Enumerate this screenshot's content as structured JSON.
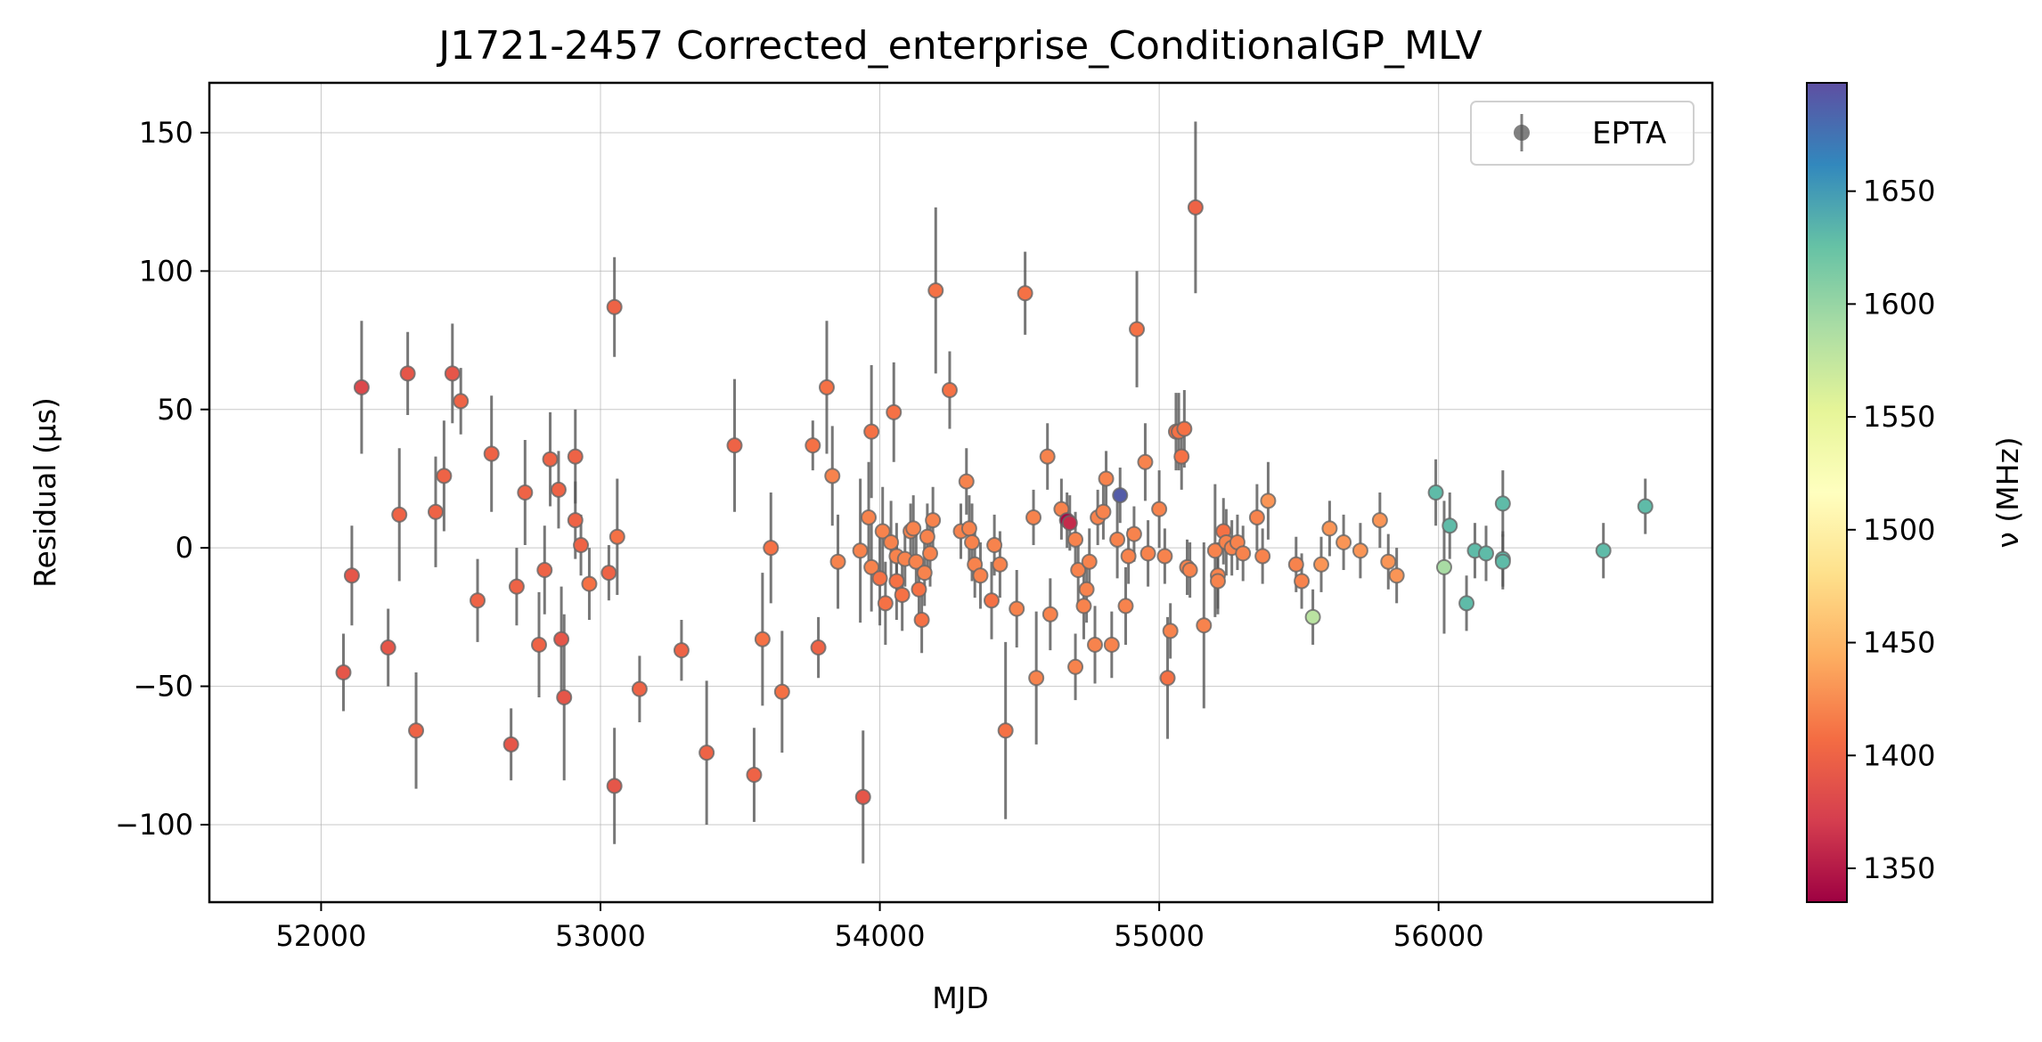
{
  "chart_data": {
    "type": "scatter",
    "title": "J1721-2457 Corrected_enterprise_ConditionalGP_MLV",
    "xlabel": "MJD",
    "ylabel": "Residual (μs)",
    "colorbar_label": "ν (MHz)",
    "xlim": [
      51600,
      56980
    ],
    "ylim": [
      -128,
      168
    ],
    "xticks": [
      "52000",
      "53000",
      "54000",
      "55000",
      "56000"
    ],
    "yticks": [
      "150",
      "100",
      "50",
      "0",
      "−50",
      "−100"
    ],
    "colorbar_range": [
      1335,
      1698
    ],
    "colorbar_ticks": [
      "1650",
      "1600",
      "1550",
      "1500",
      "1450",
      "1400",
      "1350"
    ],
    "colormap": "Spectral",
    "grid": true,
    "legend": {
      "position": "top-right",
      "label": "EPTA"
    },
    "series": [
      {
        "name": "EPTA",
        "points": [
          {
            "x": 52080,
            "y": -45,
            "err": 14,
            "freq": 1390
          },
          {
            "x": 52110,
            "y": -10,
            "err": 18,
            "freq": 1390
          },
          {
            "x": 52145,
            "y": 58,
            "err": 24,
            "freq": 1380
          },
          {
            "x": 52240,
            "y": -36,
            "err": 14,
            "freq": 1390
          },
          {
            "x": 52280,
            "y": 12,
            "err": 24,
            "freq": 1400
          },
          {
            "x": 52310,
            "y": 63,
            "err": 15,
            "freq": 1390
          },
          {
            "x": 52340,
            "y": -66,
            "err": 21,
            "freq": 1400
          },
          {
            "x": 52410,
            "y": 13,
            "err": 20,
            "freq": 1400
          },
          {
            "x": 52440,
            "y": 26,
            "err": 20,
            "freq": 1400
          },
          {
            "x": 52470,
            "y": 63,
            "err": 18,
            "freq": 1390
          },
          {
            "x": 52500,
            "y": 53,
            "err": 12,
            "freq": 1400
          },
          {
            "x": 52560,
            "y": -19,
            "err": 15,
            "freq": 1400
          },
          {
            "x": 52610,
            "y": 34,
            "err": 21,
            "freq": 1400
          },
          {
            "x": 52680,
            "y": -71,
            "err": 13,
            "freq": 1390
          },
          {
            "x": 52700,
            "y": -14,
            "err": 14,
            "freq": 1400
          },
          {
            "x": 52730,
            "y": 20,
            "err": 19,
            "freq": 1400
          },
          {
            "x": 52780,
            "y": -35,
            "err": 19,
            "freq": 1400
          },
          {
            "x": 52800,
            "y": -8,
            "err": 16,
            "freq": 1400
          },
          {
            "x": 52820,
            "y": 32,
            "err": 17,
            "freq": 1400
          },
          {
            "x": 52850,
            "y": 21,
            "err": 14,
            "freq": 1400
          },
          {
            "x": 52860,
            "y": -33,
            "err": 19,
            "freq": 1390
          },
          {
            "x": 52870,
            "y": -54,
            "err": 30,
            "freq": 1390
          },
          {
            "x": 52910,
            "y": 33,
            "err": 17,
            "freq": 1400
          },
          {
            "x": 52910,
            "y": 10,
            "err": 14,
            "freq": 1400
          },
          {
            "x": 52930,
            "y": 1,
            "err": 11,
            "freq": 1400
          },
          {
            "x": 52960,
            "y": -13,
            "err": 13,
            "freq": 1410
          },
          {
            "x": 53030,
            "y": -9,
            "err": 10,
            "freq": 1400
          },
          {
            "x": 53050,
            "y": 87,
            "err": 18,
            "freq": 1400
          },
          {
            "x": 53050,
            "y": -86,
            "err": 21,
            "freq": 1390
          },
          {
            "x": 53060,
            "y": 4,
            "err": 21,
            "freq": 1410
          },
          {
            "x": 53140,
            "y": -51,
            "err": 12,
            "freq": 1400
          },
          {
            "x": 53290,
            "y": -37,
            "err": 11,
            "freq": 1400
          },
          {
            "x": 53380,
            "y": -74,
            "err": 26,
            "freq": 1400
          },
          {
            "x": 53480,
            "y": 37,
            "err": 24,
            "freq": 1400
          },
          {
            "x": 53550,
            "y": -82,
            "err": 17,
            "freq": 1400
          },
          {
            "x": 53580,
            "y": -33,
            "err": 24,
            "freq": 1410
          },
          {
            "x": 53610,
            "y": 0,
            "err": 20,
            "freq": 1410
          },
          {
            "x": 53650,
            "y": -52,
            "err": 22,
            "freq": 1410
          },
          {
            "x": 53760,
            "y": 37,
            "err": 9,
            "freq": 1410
          },
          {
            "x": 53780,
            "y": -36,
            "err": 11,
            "freq": 1400
          },
          {
            "x": 53810,
            "y": 58,
            "err": 24,
            "freq": 1410
          },
          {
            "x": 53830,
            "y": 26,
            "err": 18,
            "freq": 1420
          },
          {
            "x": 53850,
            "y": -5,
            "err": 17,
            "freq": 1420
          },
          {
            "x": 53930,
            "y": -1,
            "err": 26,
            "freq": 1420
          },
          {
            "x": 53940,
            "y": -90,
            "err": 24,
            "freq": 1390
          },
          {
            "x": 53960,
            "y": 11,
            "err": 20,
            "freq": 1420
          },
          {
            "x": 53970,
            "y": -7,
            "err": 16,
            "freq": 1420
          },
          {
            "x": 53970,
            "y": 42,
            "err": 24,
            "freq": 1410
          },
          {
            "x": 54000,
            "y": -11,
            "err": 17,
            "freq": 1410
          },
          {
            "x": 54010,
            "y": 6,
            "err": 16,
            "freq": 1420
          },
          {
            "x": 54020,
            "y": -20,
            "err": 15,
            "freq": 1410
          },
          {
            "x": 54040,
            "y": 2,
            "err": 15,
            "freq": 1420
          },
          {
            "x": 54050,
            "y": 49,
            "err": 18,
            "freq": 1410
          },
          {
            "x": 54060,
            "y": -12,
            "err": 14,
            "freq": 1410
          },
          {
            "x": 54060,
            "y": -3,
            "err": 12,
            "freq": 1420
          },
          {
            "x": 54080,
            "y": -17,
            "err": 13,
            "freq": 1410
          },
          {
            "x": 54090,
            "y": -4,
            "err": 10,
            "freq": 1420
          },
          {
            "x": 54110,
            "y": 6,
            "err": 10,
            "freq": 1420
          },
          {
            "x": 54120,
            "y": 7,
            "err": 12,
            "freq": 1420
          },
          {
            "x": 54130,
            "y": -5,
            "err": 12,
            "freq": 1420
          },
          {
            "x": 54140,
            "y": -15,
            "err": 12,
            "freq": 1410
          },
          {
            "x": 54150,
            "y": -26,
            "err": 12,
            "freq": 1410
          },
          {
            "x": 54160,
            "y": -9,
            "err": 12,
            "freq": 1420
          },
          {
            "x": 54170,
            "y": 4,
            "err": 12,
            "freq": 1420
          },
          {
            "x": 54180,
            "y": -2,
            "err": 12,
            "freq": 1420
          },
          {
            "x": 54190,
            "y": 10,
            "err": 12,
            "freq": 1420
          },
          {
            "x": 54200,
            "y": 93,
            "err": 30,
            "freq": 1410
          },
          {
            "x": 54250,
            "y": 57,
            "err": 14,
            "freq": 1410
          },
          {
            "x": 54290,
            "y": 6,
            "err": 10,
            "freq": 1420
          },
          {
            "x": 54310,
            "y": 24,
            "err": 12,
            "freq": 1420
          },
          {
            "x": 54320,
            "y": 7,
            "err": 12,
            "freq": 1420
          },
          {
            "x": 54330,
            "y": 2,
            "err": 14,
            "freq": 1420
          },
          {
            "x": 54340,
            "y": -6,
            "err": 12,
            "freq": 1420
          },
          {
            "x": 54360,
            "y": -10,
            "err": 12,
            "freq": 1420
          },
          {
            "x": 54400,
            "y": -19,
            "err": 14,
            "freq": 1410
          },
          {
            "x": 54410,
            "y": 1,
            "err": 11,
            "freq": 1420
          },
          {
            "x": 54430,
            "y": -6,
            "err": 12,
            "freq": 1420
          },
          {
            "x": 54450,
            "y": -66,
            "err": 32,
            "freq": 1410
          },
          {
            "x": 54490,
            "y": -22,
            "err": 14,
            "freq": 1420
          },
          {
            "x": 54520,
            "y": 92,
            "err": 15,
            "freq": 1410
          },
          {
            "x": 54550,
            "y": 11,
            "err": 10,
            "freq": 1420
          },
          {
            "x": 54560,
            "y": -47,
            "err": 24,
            "freq": 1420
          },
          {
            "x": 54600,
            "y": 33,
            "err": 12,
            "freq": 1420
          },
          {
            "x": 54610,
            "y": -24,
            "err": 13,
            "freq": 1420
          },
          {
            "x": 54650,
            "y": 14,
            "err": 11,
            "freq": 1420
          },
          {
            "x": 54670,
            "y": 10,
            "err": 10,
            "freq": 1340
          },
          {
            "x": 54680,
            "y": 9,
            "err": 10,
            "freq": 1360
          },
          {
            "x": 54700,
            "y": 3,
            "err": 10,
            "freq": 1420
          },
          {
            "x": 54700,
            "y": -43,
            "err": 12,
            "freq": 1420
          },
          {
            "x": 54710,
            "y": -8,
            "err": 12,
            "freq": 1420
          },
          {
            "x": 54730,
            "y": -21,
            "err": 12,
            "freq": 1420
          },
          {
            "x": 54740,
            "y": -15,
            "err": 12,
            "freq": 1420
          },
          {
            "x": 54750,
            "y": -5,
            "err": 12,
            "freq": 1420
          },
          {
            "x": 54770,
            "y": -35,
            "err": 14,
            "freq": 1420
          },
          {
            "x": 54780,
            "y": 11,
            "err": 10,
            "freq": 1420
          },
          {
            "x": 54800,
            "y": 13,
            "err": 10,
            "freq": 1420
          },
          {
            "x": 54810,
            "y": 25,
            "err": 10,
            "freq": 1420
          },
          {
            "x": 54830,
            "y": -35,
            "err": 12,
            "freq": 1420
          },
          {
            "x": 54850,
            "y": 3,
            "err": 14,
            "freq": 1420
          },
          {
            "x": 54860,
            "y": 19,
            "err": 10,
            "freq": 1690
          },
          {
            "x": 54880,
            "y": -21,
            "err": 14,
            "freq": 1420
          },
          {
            "x": 54890,
            "y": -3,
            "err": 10,
            "freq": 1420
          },
          {
            "x": 54910,
            "y": 5,
            "err": 10,
            "freq": 1420
          },
          {
            "x": 54920,
            "y": 79,
            "err": 21,
            "freq": 1410
          },
          {
            "x": 54950,
            "y": 31,
            "err": 14,
            "freq": 1420
          },
          {
            "x": 54960,
            "y": -2,
            "err": 12,
            "freq": 1420
          },
          {
            "x": 55000,
            "y": 14,
            "err": 14,
            "freq": 1420
          },
          {
            "x": 55020,
            "y": -3,
            "err": 10,
            "freq": 1420
          },
          {
            "x": 55030,
            "y": -47,
            "err": 22,
            "freq": 1410
          },
          {
            "x": 55040,
            "y": -30,
            "err": 10,
            "freq": 1420
          },
          {
            "x": 55060,
            "y": 42,
            "err": 14,
            "freq": 1410
          },
          {
            "x": 55070,
            "y": 42,
            "err": 14,
            "freq": 1410
          },
          {
            "x": 55080,
            "y": 33,
            "err": 12,
            "freq": 1410
          },
          {
            "x": 55090,
            "y": 43,
            "err": 14,
            "freq": 1410
          },
          {
            "x": 55100,
            "y": -7,
            "err": 10,
            "freq": 1420
          },
          {
            "x": 55110,
            "y": -8,
            "err": 10,
            "freq": 1420
          },
          {
            "x": 55130,
            "y": 123,
            "err": 31,
            "freq": 1400
          },
          {
            "x": 55160,
            "y": -28,
            "err": 30,
            "freq": 1420
          },
          {
            "x": 55200,
            "y": -1,
            "err": 24,
            "freq": 1420
          },
          {
            "x": 55210,
            "y": -10,
            "err": 12,
            "freq": 1420
          },
          {
            "x": 55210,
            "y": -12,
            "err": 12,
            "freq": 1420
          },
          {
            "x": 55230,
            "y": 6,
            "err": 12,
            "freq": 1410
          },
          {
            "x": 55240,
            "y": 2,
            "err": 12,
            "freq": 1420
          },
          {
            "x": 55260,
            "y": 0,
            "err": 10,
            "freq": 1420
          },
          {
            "x": 55280,
            "y": 2,
            "err": 10,
            "freq": 1420
          },
          {
            "x": 55300,
            "y": -2,
            "err": 10,
            "freq": 1420
          },
          {
            "x": 55350,
            "y": 11,
            "err": 12,
            "freq": 1420
          },
          {
            "x": 55370,
            "y": -3,
            "err": 10,
            "freq": 1420
          },
          {
            "x": 55390,
            "y": 17,
            "err": 14,
            "freq": 1430
          },
          {
            "x": 55490,
            "y": -6,
            "err": 10,
            "freq": 1420
          },
          {
            "x": 55510,
            "y": -12,
            "err": 10,
            "freq": 1420
          },
          {
            "x": 55550,
            "y": -25,
            "err": 10,
            "freq": 1580
          },
          {
            "x": 55580,
            "y": -6,
            "err": 10,
            "freq": 1430
          },
          {
            "x": 55610,
            "y": 7,
            "err": 10,
            "freq": 1430
          },
          {
            "x": 55660,
            "y": 2,
            "err": 10,
            "freq": 1430
          },
          {
            "x": 55720,
            "y": -1,
            "err": 10,
            "freq": 1430
          },
          {
            "x": 55790,
            "y": 10,
            "err": 10,
            "freq": 1430
          },
          {
            "x": 55820,
            "y": -5,
            "err": 10,
            "freq": 1430
          },
          {
            "x": 55850,
            "y": -10,
            "err": 10,
            "freq": 1430
          },
          {
            "x": 55990,
            "y": 20,
            "err": 12,
            "freq": 1630
          },
          {
            "x": 56020,
            "y": -7,
            "err": 24,
            "freq": 1590
          },
          {
            "x": 56040,
            "y": 8,
            "err": 12,
            "freq": 1630
          },
          {
            "x": 56100,
            "y": -20,
            "err": 10,
            "freq": 1630
          },
          {
            "x": 56130,
            "y": -1,
            "err": 10,
            "freq": 1630
          },
          {
            "x": 56170,
            "y": -2,
            "err": 10,
            "freq": 1630
          },
          {
            "x": 56230,
            "y": -4,
            "err": 10,
            "freq": 1630
          },
          {
            "x": 56230,
            "y": -5,
            "err": 10,
            "freq": 1630
          },
          {
            "x": 56230,
            "y": 16,
            "err": 12,
            "freq": 1630
          },
          {
            "x": 56590,
            "y": -1,
            "err": 10,
            "freq": 1630
          },
          {
            "x": 56740,
            "y": 15,
            "err": 10,
            "freq": 1630
          }
        ]
      }
    ]
  }
}
